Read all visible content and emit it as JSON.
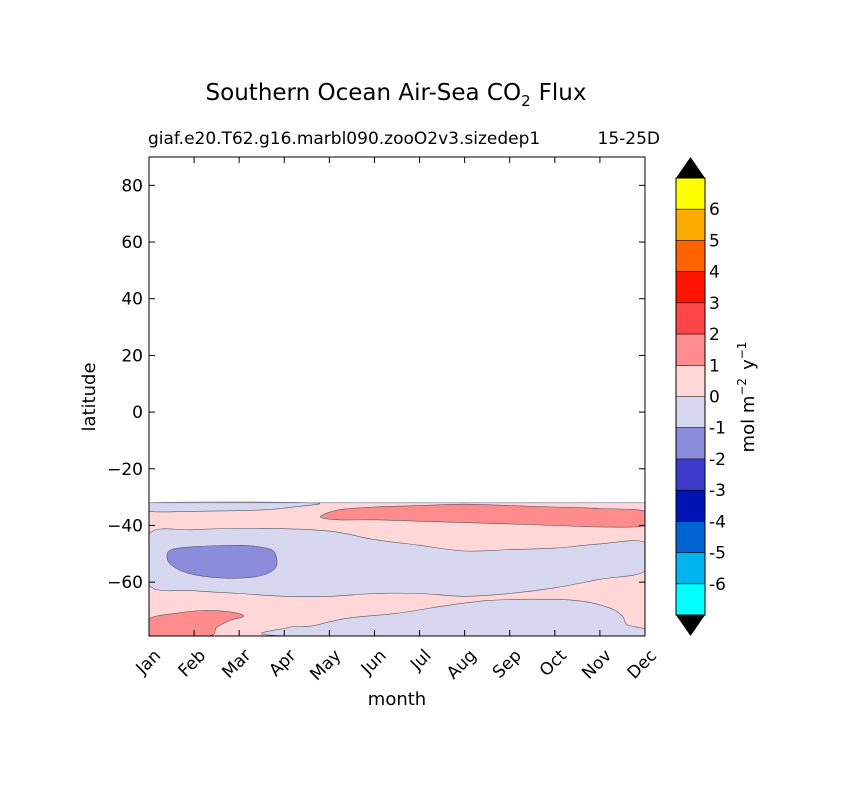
{
  "chart_data": {
    "type": "contour",
    "title": "Southern Ocean Air-Sea CO",
    "title_subscript": "2",
    "title_suffix": "Flux",
    "subtitle_left": "giaf.e20.T62.g16.marbl090.zooO2v3.sizedep1",
    "subtitle_right": "15-25D",
    "xlabel": "month",
    "ylabel": "latitude",
    "x_ticks": [
      "Jan",
      "Feb",
      "Mar",
      "Apr",
      "May",
      "Jun",
      "Jul",
      "Aug",
      "Sep",
      "Oct",
      "Nov",
      "Dec"
    ],
    "y_ticks": [
      80,
      60,
      40,
      20,
      0,
      -20,
      -40,
      -60
    ],
    "y_tick_labels": [
      "80",
      "60",
      "40",
      "20",
      "0",
      "−20",
      "−40",
      "−60"
    ],
    "xlim": [
      0,
      11
    ],
    "ylim": [
      -79,
      90
    ],
    "data_lat_extent": [
      -79,
      -32
    ],
    "colorbar": {
      "label": "mol m",
      "label_sup1": "−2",
      "label_mid": "y",
      "label_sup2": "−1",
      "levels": [
        -6,
        -5,
        -4,
        -3,
        -2,
        -1,
        0,
        1,
        2,
        3,
        4,
        5,
        6
      ],
      "level_labels": [
        "-6",
        "-5",
        "-4",
        "-3",
        "-2",
        "-1",
        "0",
        "1",
        "2",
        "3",
        "4",
        "5",
        "6"
      ],
      "colors": [
        "#00ffff",
        "#00b4ee",
        "#0064d2",
        "#0014b4",
        "#3c3cc8",
        "#8c8cdc",
        "#d7d7f0",
        "#ffd7d7",
        "#ff8c8c",
        "#ff4646",
        "#ff1400",
        "#ff6400",
        "#ffaa00",
        "#ffff00"
      ],
      "under_color": "#000000",
      "over_color": "#000000"
    },
    "regions": [
      {
        "name": "background-zone",
        "color": "#ffd7d7",
        "points": [
          [
            0,
            -79
          ],
          [
            11,
            -79
          ],
          [
            11,
            -32
          ],
          [
            0,
            -32
          ]
        ]
      },
      {
        "name": "northern-uptake-band",
        "color": "#d7d7f0",
        "points": [
          [
            0,
            -32
          ],
          [
            3.6,
            -32
          ],
          [
            3.2,
            -33.5
          ],
          [
            2.5,
            -34.5
          ],
          [
            1,
            -35
          ],
          [
            0,
            -35
          ]
        ]
      },
      {
        "name": "subantarctic-uptake-band",
        "color": "#d7d7f0",
        "points": [
          [
            0,
            -43
          ],
          [
            1,
            -41.5
          ],
          [
            2.5,
            -41
          ],
          [
            4,
            -42
          ],
          [
            5,
            -45
          ],
          [
            6,
            -47
          ],
          [
            7,
            -49
          ],
          [
            8,
            -48.5
          ],
          [
            9,
            -48
          ],
          [
            10,
            -46.5
          ],
          [
            11,
            -46
          ],
          [
            11,
            -56
          ],
          [
            10,
            -59
          ],
          [
            9,
            -62
          ],
          [
            8,
            -64
          ],
          [
            7,
            -65
          ],
          [
            6,
            -64
          ],
          [
            5,
            -64
          ],
          [
            4,
            -65
          ],
          [
            3,
            -65
          ],
          [
            2,
            -64
          ],
          [
            1,
            -63
          ],
          [
            0,
            -61
          ]
        ]
      },
      {
        "name": "antarctic-uptake-band",
        "color": "#d7d7f0",
        "points": [
          [
            3.1,
            -76
          ],
          [
            3.6,
            -75.5
          ],
          [
            4,
            -74
          ],
          [
            4.5,
            -72.5
          ],
          [
            5.5,
            -71
          ],
          [
            6.5,
            -68.5
          ],
          [
            7.5,
            -66.5
          ],
          [
            8.5,
            -66
          ],
          [
            9.5,
            -66.5
          ],
          [
            10.2,
            -69
          ],
          [
            10.5,
            -72
          ],
          [
            10.6,
            -75
          ],
          [
            11,
            -79
          ],
          [
            3.1,
            -79
          ]
        ]
      },
      {
        "name": "strong-uptake-patch",
        "color": "#8c8cdc",
        "points": [
          [
            0.5,
            -48.5
          ],
          [
            1,
            -47.5
          ],
          [
            2,
            -47
          ],
          [
            2.6,
            -48
          ],
          [
            2.8,
            -50
          ],
          [
            2.8,
            -55
          ],
          [
            2.4,
            -58
          ],
          [
            1.6,
            -58.5
          ],
          [
            0.9,
            -57
          ],
          [
            0.5,
            -54
          ],
          [
            0.4,
            -51
          ]
        ]
      },
      {
        "name": "midlatitude-outgassing",
        "color": "#ff8c8c",
        "points": [
          [
            3.8,
            -37
          ],
          [
            4.2,
            -34.5
          ],
          [
            5,
            -33.5
          ],
          [
            6,
            -33
          ],
          [
            7,
            -32.5
          ],
          [
            8,
            -33
          ],
          [
            9,
            -33.5
          ],
          [
            10,
            -34
          ],
          [
            11,
            -35
          ],
          [
            11,
            -40
          ],
          [
            10,
            -40.5
          ],
          [
            9,
            -40
          ],
          [
            8,
            -39.5
          ],
          [
            7,
            -39
          ],
          [
            6,
            -38.5
          ],
          [
            5,
            -38
          ],
          [
            4.2,
            -38
          ]
        ]
      },
      {
        "name": "polar-outgassing",
        "color": "#ff8c8c",
        "points": [
          [
            0,
            -73
          ],
          [
            0.6,
            -71
          ],
          [
            1.2,
            -70
          ],
          [
            1.8,
            -70.5
          ],
          [
            2.1,
            -72
          ],
          [
            1.8,
            -73.5
          ],
          [
            1.5,
            -76
          ],
          [
            1.3,
            -79
          ],
          [
            0,
            -79
          ]
        ]
      }
    ]
  }
}
